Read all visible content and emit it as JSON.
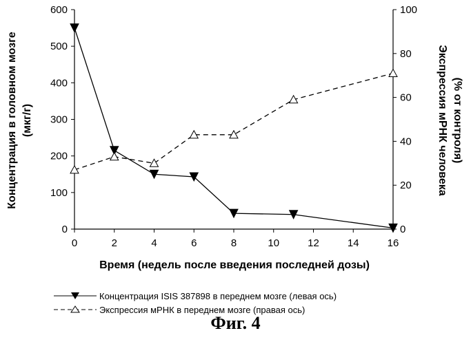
{
  "chart_data": {
    "type": "line",
    "x": [
      0,
      2,
      4,
      6,
      8,
      11,
      16
    ],
    "xlim": [
      0,
      16
    ],
    "xticks": [
      "0",
      "2",
      "4",
      "6",
      "8",
      "10",
      "12",
      "14",
      "16"
    ],
    "xlabel": "Время (недель после введения последней дозы)",
    "left_axis": {
      "label_line1": "Концентрация в головном мозге",
      "label_line2": "(мкг/г)",
      "ylim": [
        0,
        600
      ],
      "ticks": [
        "0",
        "100",
        "200",
        "300",
        "400",
        "500",
        "600"
      ]
    },
    "right_axis": {
      "label_line1": "Экспрессия мРНК человека",
      "label_line2": "(% от контроля)",
      "ylim": [
        0,
        100
      ],
      "ticks": [
        "0",
        "20",
        "40",
        "60",
        "80",
        "100"
      ]
    },
    "series": [
      {
        "name": "Концентрация ISIS 387898 в переднем мозге (левая ось)",
        "axis": "left",
        "marker": "filled-down-triangle",
        "line": "solid",
        "values": [
          550,
          215,
          150,
          143,
          43,
          40,
          3
        ]
      },
      {
        "name": "Экспрессия мРНК в переднем мозге (правая ось)",
        "axis": "right",
        "marker": "open-up-triangle",
        "line": "dashed",
        "values": [
          27,
          33,
          30,
          43,
          43,
          59,
          71
        ]
      }
    ]
  },
  "caption": "Фиг. 4"
}
